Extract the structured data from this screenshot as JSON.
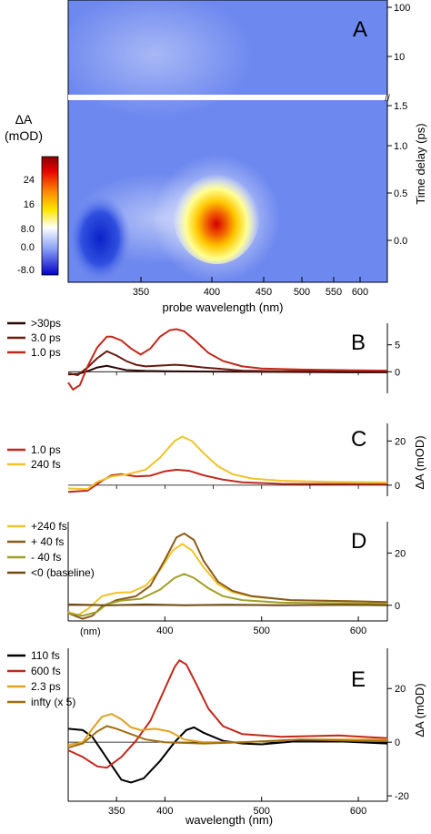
{
  "chart_data": [
    {
      "panel": "A",
      "type": "heatmap",
      "xlabel": "probe wavelength (nm)",
      "ylabel": "Time delay (ps)",
      "x_ticks": [
        "350",
        "400",
        "450",
        "500",
        "550",
        "600"
      ],
      "y_ticks_lower": [
        "0.0",
        "0.5",
        "1.0",
        "1.5"
      ],
      "y_ticks_upper": [
        "10",
        "100"
      ],
      "y_break": "//",
      "colorbar": {
        "title": "ΔA",
        "unit": "(mOD)",
        "ticks": [
          "24",
          "16",
          "8.0",
          "0.0",
          "-8.0"
        ],
        "range": [
          -9,
          30
        ]
      },
      "features": [
        {
          "wavelength": 420,
          "delay": 0.05,
          "value": 30
        },
        {
          "wavelength": 320,
          "delay": 0.0,
          "value": -9
        }
      ]
    },
    {
      "panel": "B",
      "type": "line",
      "xlim": [
        300,
        630
      ],
      "ylim": [
        -4,
        9
      ],
      "y_ticks": [
        "0",
        "5"
      ],
      "series": [
        {
          "name": ">30ps",
          "color": "#2a0505",
          "points": [
            [
              300,
              -0.5
            ],
            [
              310,
              -0.4
            ],
            [
              320,
              0.1
            ],
            [
              330,
              0.8
            ],
            [
              340,
              1.1
            ],
            [
              350,
              0.7
            ],
            [
              360,
              0.3
            ],
            [
              380,
              0.15
            ],
            [
              400,
              0.1
            ],
            [
              430,
              0.05
            ],
            [
              480,
              0.0
            ],
            [
              600,
              -0.1
            ],
            [
              630,
              -0.1
            ]
          ]
        },
        {
          "name": "3.0 ps",
          "color": "#6b1a10",
          "points": [
            [
              300,
              -0.3
            ],
            [
              310,
              -0.6
            ],
            [
              320,
              0.8
            ],
            [
              330,
              2.5
            ],
            [
              340,
              3.8
            ],
            [
              350,
              3.0
            ],
            [
              360,
              2.0
            ],
            [
              370,
              1.3
            ],
            [
              380,
              1.0
            ],
            [
              400,
              1.2
            ],
            [
              410,
              1.3
            ],
            [
              420,
              1.2
            ],
            [
              440,
              0.8
            ],
            [
              480,
              0.2
            ],
            [
              520,
              0.1
            ],
            [
              600,
              0.2
            ],
            [
              630,
              0.2
            ]
          ]
        },
        {
          "name": "1.0 ps",
          "color": "#c0291b",
          "points": [
            [
              300,
              -2.0
            ],
            [
              305,
              -3.3
            ],
            [
              312,
              -2.5
            ],
            [
              320,
              1.0
            ],
            [
              330,
              4.5
            ],
            [
              340,
              6.5
            ],
            [
              345,
              6.5
            ],
            [
              355,
              5.8
            ],
            [
              365,
              4.3
            ],
            [
              375,
              3.2
            ],
            [
              385,
              4.3
            ],
            [
              395,
              6.5
            ],
            [
              405,
              7.7
            ],
            [
              412,
              7.9
            ],
            [
              420,
              7.5
            ],
            [
              430,
              6.0
            ],
            [
              445,
              3.5
            ],
            [
              460,
              2.0
            ],
            [
              480,
              1.0
            ],
            [
              500,
              0.6
            ],
            [
              540,
              0.4
            ],
            [
              580,
              0.3
            ],
            [
              630,
              0.2
            ]
          ]
        }
      ]
    },
    {
      "panel": "C",
      "type": "line",
      "xlim": [
        300,
        630
      ],
      "ylim": [
        -5,
        28
      ],
      "ylabel": "ΔA (mOD)",
      "y_ticks": [
        "0",
        "20"
      ],
      "series": [
        {
          "name": "1.0 ps",
          "color": "#c0291b",
          "points": [
            [
              300,
              -3.0
            ],
            [
              320,
              -2.5
            ],
            [
              335,
              2.0
            ],
            [
              345,
              4.5
            ],
            [
              355,
              5.0
            ],
            [
              370,
              4.0
            ],
            [
              385,
              4.3
            ],
            [
              400,
              6.3
            ],
            [
              412,
              7.0
            ],
            [
              425,
              6.5
            ],
            [
              440,
              4.5
            ],
            [
              460,
              2.5
            ],
            [
              480,
              1.3
            ],
            [
              520,
              0.6
            ],
            [
              600,
              0.5
            ],
            [
              630,
              0.5
            ]
          ]
        },
        {
          "name": "240 fs",
          "color": "#f0c328",
          "points": [
            [
              300,
              -1.5
            ],
            [
              320,
              -1.8
            ],
            [
              330,
              1.5
            ],
            [
              345,
              4.0
            ],
            [
              360,
              4.8
            ],
            [
              380,
              7.0
            ],
            [
              395,
              12.5
            ],
            [
              410,
              20.0
            ],
            [
              418,
              22.0
            ],
            [
              428,
              20.0
            ],
            [
              440,
              14.5
            ],
            [
              455,
              8.5
            ],
            [
              470,
              5.0
            ],
            [
              490,
              3.0
            ],
            [
              520,
              2.0
            ],
            [
              570,
              1.5
            ],
            [
              630,
              1.2
            ]
          ]
        }
      ]
    },
    {
      "panel": "D",
      "type": "line",
      "xlim": [
        300,
        630
      ],
      "ylim": [
        -6,
        32
      ],
      "y_ticks": [
        "0",
        "20"
      ],
      "series": [
        {
          "name": "+240 fs",
          "color": "#f0c328",
          "points": [
            [
              300,
              -2.5
            ],
            [
              310,
              -3.8
            ],
            [
              320,
              -1.5
            ],
            [
              335,
              3.5
            ],
            [
              350,
              4.8
            ],
            [
              365,
              5.0
            ],
            [
              380,
              7.5
            ],
            [
              395,
              13.5
            ],
            [
              408,
              21.0
            ],
            [
              418,
              23.5
            ],
            [
              428,
              21.0
            ],
            [
              440,
              14.5
            ],
            [
              455,
              8.0
            ],
            [
              470,
              5.0
            ],
            [
              490,
              3.3
            ],
            [
              530,
              2.0
            ],
            [
              600,
              1.5
            ],
            [
              630,
              1.0
            ]
          ]
        },
        {
          "name": "+ 40 fs",
          "color": "#8a5a1a",
          "points": [
            [
              300,
              -3.0
            ],
            [
              315,
              -5.2
            ],
            [
              325,
              -4.0
            ],
            [
              335,
              -0.5
            ],
            [
              350,
              2.0
            ],
            [
              370,
              3.5
            ],
            [
              385,
              7.5
            ],
            [
              400,
              17.5
            ],
            [
              412,
              26.0
            ],
            [
              420,
              27.5
            ],
            [
              430,
              25.0
            ],
            [
              440,
              17.0
            ],
            [
              455,
              9.0
            ],
            [
              470,
              5.5
            ],
            [
              490,
              3.5
            ],
            [
              530,
              2.0
            ],
            [
              600,
              1.5
            ],
            [
              630,
              1.2
            ]
          ]
        },
        {
          "name": "- 40 fs",
          "color": "#a0a028",
          "points": [
            [
              300,
              -3.0
            ],
            [
              315,
              -4.0
            ],
            [
              330,
              -2.5
            ],
            [
              340,
              0.5
            ],
            [
              355,
              1.8
            ],
            [
              375,
              2.5
            ],
            [
              395,
              6.0
            ],
            [
              410,
              10.5
            ],
            [
              420,
              12.0
            ],
            [
              430,
              10.5
            ],
            [
              445,
              6.5
            ],
            [
              460,
              3.5
            ],
            [
              480,
              2.0
            ],
            [
              520,
              1.0
            ],
            [
              600,
              0.7
            ],
            [
              630,
              0.5
            ]
          ]
        },
        {
          "name": "<0 (baseline)",
          "color": "#6e4a10",
          "points": [
            [
              300,
              0.3
            ],
            [
              340,
              0.0
            ],
            [
              380,
              0.3
            ],
            [
              420,
              0.0
            ],
            [
              460,
              0.2
            ],
            [
              520,
              0.0
            ],
            [
              580,
              0.2
            ],
            [
              630,
              0.0
            ]
          ]
        }
      ]
    },
    {
      "panel": "E",
      "type": "line",
      "xlim": [
        300,
        630
      ],
      "ylim": [
        -22,
        35
      ],
      "xlabel": "wavelength (nm)",
      "ylabel": "ΔA (mOD)",
      "x_ticks": [
        "350",
        "400",
        "500",
        "600"
      ],
      "y_ticks": [
        "-20",
        "0",
        "20"
      ],
      "series": [
        {
          "name": "110 fs",
          "color": "#000000",
          "points": [
            [
              300,
              5.0
            ],
            [
              315,
              4.5
            ],
            [
              325,
              2.0
            ],
            [
              340,
              -6.0
            ],
            [
              355,
              -14.0
            ],
            [
              365,
              -15.0
            ],
            [
              378,
              -13.5
            ],
            [
              395,
              -7.0
            ],
            [
              410,
              0.0
            ],
            [
              422,
              4.5
            ],
            [
              430,
              5.5
            ],
            [
              440,
              3.5
            ],
            [
              460,
              0.5
            ],
            [
              480,
              -0.5
            ],
            [
              500,
              -0.8
            ],
            [
              540,
              0.5
            ],
            [
              580,
              0.3
            ],
            [
              630,
              -0.5
            ]
          ]
        },
        {
          "name": "600 fs",
          "color": "#c0291b",
          "points": [
            [
              300,
              -3.0
            ],
            [
              315,
              -5.5
            ],
            [
              330,
              -9.0
            ],
            [
              340,
              -9.5
            ],
            [
              355,
              -5.5
            ],
            [
              370,
              0.5
            ],
            [
              385,
              8.0
            ],
            [
              400,
              20.0
            ],
            [
              410,
              28.0
            ],
            [
              415,
              30.5
            ],
            [
              422,
              29.0
            ],
            [
              432,
              22.0
            ],
            [
              445,
              12.5
            ],
            [
              460,
              6.0
            ],
            [
              480,
              3.0
            ],
            [
              520,
              2.0
            ],
            [
              580,
              2.5
            ],
            [
              630,
              1.5
            ]
          ]
        },
        {
          "name": "2.3 ps",
          "color": "#e0a021",
          "points": [
            [
              300,
              -1.0
            ],
            [
              315,
              0.0
            ],
            [
              325,
              5.0
            ],
            [
              335,
              9.5
            ],
            [
              345,
              10.5
            ],
            [
              355,
              8.5
            ],
            [
              365,
              5.5
            ],
            [
              375,
              4.5
            ],
            [
              390,
              5.0
            ],
            [
              405,
              4.0
            ],
            [
              420,
              1.0
            ],
            [
              440,
              0.0
            ],
            [
              480,
              0.0
            ],
            [
              540,
              1.0
            ],
            [
              600,
              1.0
            ],
            [
              630,
              1.0
            ]
          ]
        },
        {
          "name": "infty (x 5)",
          "color": "#a06e10",
          "points": [
            [
              300,
              -2.0
            ],
            [
              315,
              -0.5
            ],
            [
              330,
              4.0
            ],
            [
              340,
              6.0
            ],
            [
              350,
              5.0
            ],
            [
              365,
              3.0
            ],
            [
              380,
              1.0
            ],
            [
              400,
              0.0
            ],
            [
              440,
              -0.5
            ],
            [
              480,
              0.0
            ],
            [
              540,
              1.0
            ],
            [
              600,
              0.5
            ],
            [
              630,
              0.5
            ]
          ]
        }
      ]
    }
  ],
  "panel_labels": [
    "A",
    "B",
    "C",
    "D",
    "E"
  ],
  "nm_label": "(nm)",
  "colors": {
    "frame": "#000000",
    "bg": "#ffffff"
  }
}
